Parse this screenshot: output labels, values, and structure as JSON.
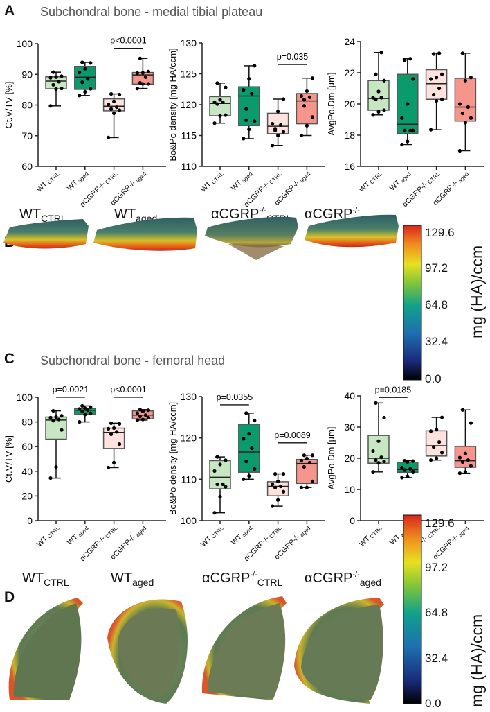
{
  "panels": {
    "A": {
      "letter": "A",
      "title": "Subchondral bone - medial tibial plateau"
    },
    "B": {
      "letter": "B"
    },
    "C": {
      "letter": "C",
      "title": "Subchondral bone - femoral head"
    },
    "D": {
      "letter": "D"
    }
  },
  "image_labels": [
    {
      "main": "WT",
      "sup": "",
      "sub": "CTRL"
    },
    {
      "main": "WT",
      "sup": "",
      "sub": "aged"
    },
    {
      "main": "αCGRP",
      "sup": "-/-",
      "sub": "CTRL"
    },
    {
      "main": "αCGRP",
      "sup": "-/-",
      "sub": "aged"
    }
  ],
  "colorbar": {
    "ticks": [
      "129.6",
      "97.2",
      "64.8",
      "32.4",
      "0.0"
    ],
    "unit": "mg (HA)/ccm"
  },
  "group_colors": [
    "#c6e7c1",
    "#0a9a6c",
    "#fde2de",
    "#f5958b"
  ],
  "x_categories": [
    {
      "main": "WT",
      "sub": "CTRL"
    },
    {
      "main": "WT",
      "sub": "aged"
    },
    {
      "main": "αCGRP-/-",
      "sub": "CTRL"
    },
    {
      "main": "αCGRP-/-",
      "sub": "aged"
    }
  ],
  "chart_data": [
    {
      "panel": "A",
      "type": "box",
      "ylabel": "Ct.V/TV [%]",
      "ylim": [
        60,
        100
      ],
      "yticks": [
        "60",
        "70",
        "80",
        "90",
        "100"
      ],
      "groups": [
        {
          "min": 79.7,
          "q1": 85.3,
          "median": 87.8,
          "q3": 89.2,
          "max": 90.7,
          "points": [
            79.7,
            85.2,
            85.4,
            86.6,
            87.6,
            88.9,
            89.1,
            89.4,
            90.7
          ]
        },
        {
          "min": 83.1,
          "q1": 85.1,
          "median": 89.1,
          "q3": 92.6,
          "max": 93.9,
          "points": [
            83.1,
            84.3,
            85.3,
            87.4,
            88.5,
            90.6,
            91.8,
            93.7,
            93.9
          ]
        },
        {
          "min": 69.4,
          "q1": 78.1,
          "median": 79.6,
          "q3": 82.0,
          "max": 83.6,
          "points": [
            69.4,
            77.3,
            78.3,
            78.7,
            79.3,
            80.2,
            81.2,
            83.4,
            83.6
          ]
        },
        {
          "min": 85.4,
          "q1": 86.8,
          "median": 89.8,
          "q3": 90.6,
          "max": 95.2,
          "points": [
            85.4,
            86.9,
            86.9,
            87.2,
            89.1,
            90.4,
            90.5,
            90.9,
            95.2
          ]
        }
      ],
      "significance": [
        {
          "from": 3,
          "to": 4,
          "label": "p<0.0001",
          "y": 98.5
        }
      ]
    },
    {
      "panel": "A",
      "type": "box",
      "ylabel": "Bo&Po density [mg HA/ccm]",
      "ylim": [
        110,
        130
      ],
      "yticks": [
        "110",
        "115",
        "120",
        "125",
        "130"
      ],
      "groups": [
        {
          "min": 117.0,
          "q1": 118.2,
          "median": 120.2,
          "q3": 121.3,
          "max": 123.5,
          "points": [
            117.0,
            118.2,
            118.3,
            120.1,
            120.4,
            120.4,
            120.8,
            122.8,
            123.5
          ]
        },
        {
          "min": 114.5,
          "q1": 116.6,
          "median": 121.4,
          "q3": 122.9,
          "max": 126.3,
          "points": [
            114.5,
            116.0,
            117.3,
            119.3,
            121.8,
            122.4,
            124.2,
            126.3,
            117.5
          ]
        },
        {
          "min": 113.4,
          "q1": 115.3,
          "median": 116.5,
          "q3": 118.6,
          "max": 120.9,
          "points": [
            113.4,
            115.0,
            115.6,
            116.1,
            116.7,
            116.9,
            118.9,
            120.9,
            115.8
          ]
        },
        {
          "min": 115.0,
          "q1": 116.9,
          "median": 120.6,
          "q3": 121.8,
          "max": 124.3,
          "points": [
            115.0,
            116.6,
            118.0,
            120.8,
            121.2,
            121.4,
            122.2,
            124.3,
            119.8
          ]
        }
      ],
      "significance": [
        {
          "from": 3,
          "to": 4,
          "label": "p=0.035",
          "y": 126.5
        }
      ]
    },
    {
      "panel": "A",
      "type": "box",
      "ylabel": "AvgPo.Dm [µm]",
      "ylim": [
        16,
        24
      ],
      "yticks": [
        "16",
        "18",
        "20",
        "22",
        "24"
      ],
      "groups": [
        {
          "min": 19.3,
          "q1": 19.6,
          "median": 20.35,
          "q3": 21.5,
          "max": 23.3,
          "points": [
            19.3,
            19.5,
            19.6,
            20.3,
            20.4,
            20.4,
            20.8,
            21.5,
            21.9,
            23.3
          ]
        },
        {
          "min": 17.4,
          "q1": 18.1,
          "median": 18.7,
          "q3": 21.9,
          "max": 22.9,
          "points": [
            17.4,
            17.6,
            18.3,
            18.3,
            18.3,
            19.1,
            20.0,
            21.6,
            22.8,
            22.9
          ]
        },
        {
          "min": 18.35,
          "q1": 20.3,
          "median": 21.3,
          "q3": 22.2,
          "max": 23.25,
          "points": [
            18.35,
            20.2,
            20.3,
            20.6,
            21.0,
            21.6,
            21.7,
            21.9,
            23.2,
            23.25
          ]
        },
        {
          "min": 17.0,
          "q1": 18.9,
          "median": 19.8,
          "q3": 21.65,
          "max": 23.25,
          "points": [
            17.0,
            18.8,
            19.1,
            19.4,
            19.8,
            20.0,
            21.5,
            21.7,
            23.25
          ]
        }
      ],
      "significance": []
    },
    {
      "panel": "C",
      "type": "box",
      "ylabel": "Ct.V/TV [%]",
      "ylim": [
        0,
        100
      ],
      "yticks": [
        "0",
        "20",
        "40",
        "60",
        "80",
        "100"
      ],
      "groups": [
        {
          "min": 34.5,
          "q1": 66.0,
          "median": 81.5,
          "q3": 84.0,
          "max": 89.0,
          "points": [
            34.5,
            43.5,
            73.5,
            81.0,
            82.0,
            83.5,
            84.0,
            85.0,
            89.0
          ]
        },
        {
          "min": 80.0,
          "q1": 86.0,
          "median": 89.5,
          "q3": 91.0,
          "max": 93.0,
          "points": [
            80.0,
            86.0,
            87.0,
            88.5,
            89.5,
            90.5,
            91.0,
            92.0,
            93.0
          ]
        },
        {
          "min": 43.0,
          "q1": 58.5,
          "median": 71.5,
          "q3": 75.0,
          "max": 79.0,
          "points": [
            43.0,
            47.0,
            62.0,
            70.0,
            72.0,
            74.5,
            75.0,
            78.5,
            79.0
          ]
        },
        {
          "min": 81.5,
          "q1": 82.5,
          "median": 85.5,
          "q3": 89.0,
          "max": 90.0,
          "points": [
            81.5,
            82.0,
            83.5,
            84.5,
            85.5,
            87.0,
            88.5,
            89.5,
            90.0
          ]
        }
      ],
      "significance": [
        {
          "from": 1,
          "to": 2,
          "label": "p=0.0021",
          "y": 100
        },
        {
          "from": 3,
          "to": 4,
          "label": "p<0.0001",
          "y": 100
        }
      ]
    },
    {
      "panel": "C",
      "type": "box",
      "ylabel": "Bo&Po density [mg HA/ccm]",
      "ylim": [
        100,
        130
      ],
      "yticks": [
        "100",
        "110",
        "120",
        "130"
      ],
      "groups": [
        {
          "min": 101.9,
          "q1": 107.7,
          "median": 110.5,
          "q3": 114.5,
          "max": 115.4,
          "points": [
            101.9,
            105.8,
            108.2,
            108.8,
            108.8,
            112.0,
            113.6,
            114.6,
            115.4
          ]
        },
        {
          "min": 110.0,
          "q1": 111.7,
          "median": 116.6,
          "q3": 123.3,
          "max": 126.0,
          "points": [
            110.0,
            110.8,
            112.5,
            114.3,
            117.5,
            119.8,
            121.0,
            124.2,
            126.0
          ]
        },
        {
          "min": 103.5,
          "q1": 106.0,
          "median": 108.3,
          "q3": 109.4,
          "max": 111.3,
          "points": [
            103.5,
            105.0,
            107.0,
            108.0,
            108.3,
            108.8,
            109.5,
            111.3,
            111.3
          ]
        },
        {
          "min": 108.0,
          "q1": 109.0,
          "median": 113.8,
          "q3": 114.8,
          "max": 115.8,
          "points": [
            108.0,
            108.0,
            109.5,
            113.0,
            114.0,
            114.5,
            115.0,
            115.8,
            115.8
          ]
        }
      ],
      "significance": [
        {
          "from": 1,
          "to": 2,
          "label": "p=0.0355",
          "y": 128
        },
        {
          "from": 3,
          "to": 4,
          "label": "p=0.0089",
          "y": 118.8
        }
      ]
    },
    {
      "panel": "C",
      "type": "box",
      "ylabel": "AvgPo.Dm [µm]",
      "ylim": [
        0,
        40
      ],
      "yticks": [
        "0",
        "10",
        "20",
        "30",
        "40"
      ],
      "groups": [
        {
          "min": 15.6,
          "q1": 18.4,
          "median": 20.0,
          "q3": 27.3,
          "max": 37.7,
          "points": [
            15.6,
            18.5,
            19.0,
            19.4,
            20.3,
            22.3,
            25.5,
            33.0,
            37.7
          ]
        },
        {
          "min": 13.8,
          "q1": 15.5,
          "median": 16.4,
          "q3": 18.7,
          "max": 19.2,
          "points": [
            13.8,
            14.2,
            15.7,
            16.2,
            16.6,
            17.0,
            18.8,
            19.1,
            19.2
          ]
        },
        {
          "min": 19.4,
          "q1": 20.7,
          "median": 24.0,
          "q3": 28.8,
          "max": 33.1,
          "points": [
            19.4,
            20.0,
            21.8,
            23.6,
            25.2,
            28.7,
            29.2,
            33.1
          ]
        },
        {
          "min": 15.2,
          "q1": 17.1,
          "median": 19.2,
          "q3": 23.8,
          "max": 35.5,
          "points": [
            15.2,
            15.6,
            17.5,
            18.8,
            19.4,
            20.2,
            21.5,
            31.3,
            35.5
          ]
        }
      ],
      "significance": [
        {
          "from": 1,
          "to": 2,
          "label": "p=0.0185",
          "y": 39.5
        }
      ]
    }
  ]
}
